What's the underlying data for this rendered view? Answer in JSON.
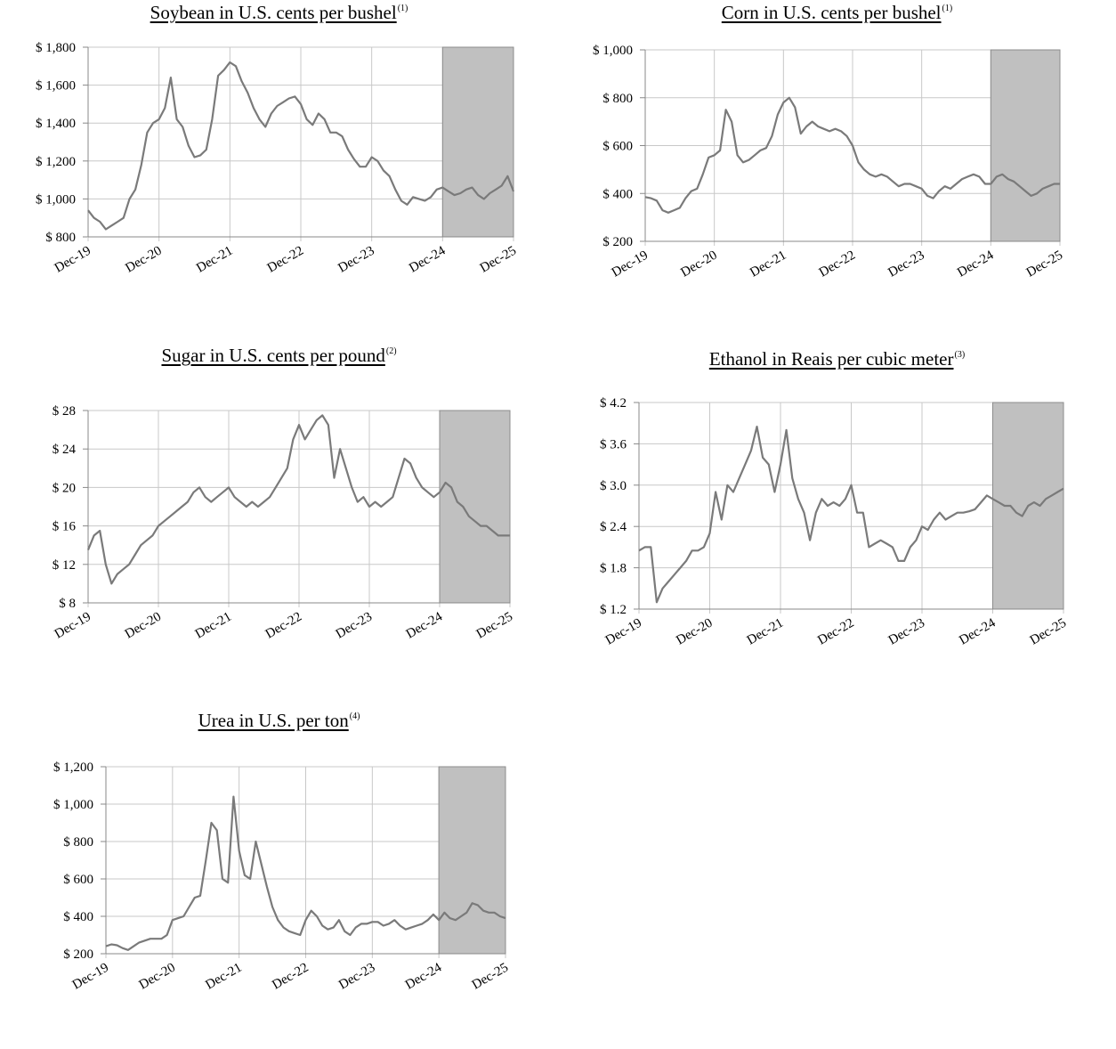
{
  "chart_data": [
    {
      "type": "line",
      "title": "Soybean in U.S. cents per bushel",
      "title_note": "(1)",
      "x_ticks": [
        "Dec-19",
        "Dec-20",
        "Dec-21",
        "Dec-22",
        "Dec-23",
        "Dec-24",
        "Dec-25"
      ],
      "y_ticks": [
        "$ 800",
        "$ 1,000",
        "$ 1,200",
        "$ 1,400",
        "$ 1,600",
        "$ 1,800"
      ],
      "ylim": [
        800,
        1800
      ],
      "xlim": [
        0,
        72
      ],
      "shaded_range": [
        60,
        72
      ],
      "line_color": "#7a7a7a",
      "shade_color": "#c0c0c0",
      "series": [
        {
          "x": [
            0,
            1,
            2,
            3,
            4,
            5,
            6,
            7,
            8,
            9,
            10,
            11,
            12,
            13,
            14,
            15,
            16,
            17,
            18,
            19,
            20,
            21,
            22,
            23,
            24,
            25,
            26,
            27,
            28,
            29,
            30,
            31,
            32,
            33,
            34,
            35,
            36,
            37,
            38,
            39,
            40,
            41,
            42,
            43,
            44,
            45,
            46,
            47,
            48,
            49,
            50,
            51,
            52,
            53,
            54,
            55,
            56,
            57,
            58,
            59,
            60,
            61,
            62,
            63,
            64,
            65,
            66,
            67,
            68,
            69,
            70,
            71,
            72
          ],
          "values": [
            940,
            900,
            880,
            840,
            860,
            880,
            900,
            1000,
            1050,
            1180,
            1350,
            1400,
            1420,
            1480,
            1640,
            1420,
            1380,
            1280,
            1220,
            1230,
            1260,
            1420,
            1650,
            1680,
            1720,
            1700,
            1620,
            1560,
            1480,
            1420,
            1380,
            1450,
            1490,
            1510,
            1530,
            1540,
            1500,
            1420,
            1390,
            1450,
            1420,
            1350,
            1350,
            1330,
            1260,
            1210,
            1170,
            1170,
            1220,
            1200,
            1150,
            1120,
            1050,
            990,
            970,
            1010,
            1000,
            990,
            1010,
            1050,
            1060,
            1040,
            1020,
            1030,
            1050,
            1060,
            1020,
            1000,
            1030,
            1050,
            1070,
            1120,
            1040
          ]
        }
      ]
    },
    {
      "type": "line",
      "title": "Corn in U.S. cents per bushel",
      "title_note": "(1)",
      "x_ticks": [
        "Dec-19",
        "Dec-20",
        "Dec-21",
        "Dec-22",
        "Dec-23",
        "Dec-24",
        "Dec-25"
      ],
      "y_ticks": [
        "$ 200",
        "$ 400",
        "$ 600",
        "$ 800",
        "$ 1,000"
      ],
      "ylim": [
        200,
        1000
      ],
      "xlim": [
        0,
        72
      ],
      "shaded_range": [
        60,
        72
      ],
      "line_color": "#7a7a7a",
      "shade_color": "#c0c0c0",
      "series": [
        {
          "x": [
            0,
            1,
            2,
            3,
            4,
            5,
            6,
            7,
            8,
            9,
            10,
            11,
            12,
            13,
            14,
            15,
            16,
            17,
            18,
            19,
            20,
            21,
            22,
            23,
            24,
            25,
            26,
            27,
            28,
            29,
            30,
            31,
            32,
            33,
            34,
            35,
            36,
            37,
            38,
            39,
            40,
            41,
            42,
            43,
            44,
            45,
            46,
            47,
            48,
            49,
            50,
            51,
            52,
            53,
            54,
            55,
            56,
            57,
            58,
            59,
            60,
            61,
            62,
            63,
            64,
            65,
            66,
            67,
            68,
            69,
            70,
            71,
            72
          ],
          "values": [
            385,
            380,
            370,
            330,
            320,
            330,
            340,
            380,
            410,
            420,
            480,
            550,
            560,
            580,
            750,
            700,
            560,
            530,
            540,
            560,
            580,
            590,
            640,
            730,
            780,
            800,
            760,
            650,
            680,
            700,
            680,
            670,
            660,
            670,
            660,
            640,
            600,
            530,
            500,
            480,
            470,
            480,
            470,
            450,
            430,
            440,
            440,
            430,
            420,
            390,
            380,
            410,
            430,
            420,
            440,
            460,
            470,
            480,
            470,
            440,
            440,
            470,
            480,
            460,
            450,
            430,
            410,
            390,
            400,
            420,
            430,
            440,
            440
          ]
        }
      ]
    },
    {
      "type": "line",
      "title": "Sugar in U.S. cents per pound",
      "title_note": "(2)",
      "x_ticks": [
        "Dec-19",
        "Dec-20",
        "Dec-21",
        "Dec-22",
        "Dec-23",
        "Dec-24",
        "Dec-25"
      ],
      "y_ticks": [
        "$ 8",
        "$ 12",
        "$ 16",
        "$ 20",
        "$ 24",
        "$ 28"
      ],
      "ylim": [
        8,
        28
      ],
      "xlim": [
        0,
        72
      ],
      "shaded_range": [
        60,
        72
      ],
      "line_color": "#7a7a7a",
      "shade_color": "#c0c0c0",
      "series": [
        {
          "x": [
            0,
            1,
            2,
            3,
            4,
            5,
            6,
            7,
            8,
            9,
            10,
            11,
            12,
            13,
            14,
            15,
            16,
            17,
            18,
            19,
            20,
            21,
            22,
            23,
            24,
            25,
            26,
            27,
            28,
            29,
            30,
            31,
            32,
            33,
            34,
            35,
            36,
            37,
            38,
            39,
            40,
            41,
            42,
            43,
            44,
            45,
            46,
            47,
            48,
            49,
            50,
            51,
            52,
            53,
            54,
            55,
            56,
            57,
            58,
            59,
            60,
            61,
            62,
            63,
            64,
            65,
            66,
            67,
            68,
            69,
            70,
            71,
            72
          ],
          "values": [
            13.5,
            15.0,
            15.5,
            12.0,
            10.0,
            11.0,
            11.5,
            12.0,
            13.0,
            14.0,
            14.5,
            15.0,
            16.0,
            16.5,
            17.0,
            17.5,
            18.0,
            18.5,
            19.5,
            20.0,
            19.0,
            18.5,
            19.0,
            19.5,
            20.0,
            19.0,
            18.5,
            18.0,
            18.5,
            18.0,
            18.5,
            19.0,
            20.0,
            21.0,
            22.0,
            25.0,
            26.5,
            25.0,
            26.0,
            27.0,
            27.5,
            26.5,
            21.0,
            24.0,
            22.0,
            20.0,
            18.5,
            19.0,
            18.0,
            18.5,
            18.0,
            18.5,
            19.0,
            21.0,
            23.0,
            22.5,
            21.0,
            20.0,
            19.5,
            19.0,
            19.5,
            20.5,
            20.0,
            18.5,
            18.0,
            17.0,
            16.5,
            16.0,
            16.0,
            15.5,
            15.0,
            15.0,
            15.0
          ]
        }
      ]
    },
    {
      "type": "line",
      "title": "Ethanol in Reais per cubic meter",
      "title_note": "(3)",
      "x_ticks": [
        "Dec-19",
        "Dec-20",
        "Dec-21",
        "Dec-22",
        "Dec-23",
        "Dec-24",
        "Dec-25"
      ],
      "y_ticks": [
        "$ 1.2",
        "$ 1.8",
        "$ 2.4",
        "$ 3.0",
        "$ 3.6",
        "$ 4.2"
      ],
      "ylim": [
        1.2,
        4.2
      ],
      "xlim": [
        0,
        72
      ],
      "shaded_range": [
        60,
        72
      ],
      "line_color": "#7a7a7a",
      "shade_color": "#c0c0c0",
      "series": [
        {
          "x": [
            0,
            1,
            2,
            3,
            4,
            5,
            6,
            7,
            8,
            9,
            10,
            11,
            12,
            13,
            14,
            15,
            16,
            17,
            18,
            19,
            20,
            21,
            22,
            23,
            24,
            25,
            26,
            27,
            28,
            29,
            30,
            31,
            32,
            33,
            34,
            35,
            36,
            37,
            38,
            39,
            40,
            41,
            42,
            43,
            44,
            45,
            46,
            47,
            48,
            49,
            50,
            51,
            52,
            53,
            54,
            55,
            56,
            57,
            58,
            59,
            60,
            61,
            62,
            63,
            64,
            65,
            66,
            67,
            68,
            69,
            70,
            71,
            72
          ],
          "values": [
            2.05,
            2.1,
            2.1,
            1.3,
            1.5,
            1.6,
            1.7,
            1.8,
            1.9,
            2.05,
            2.05,
            2.1,
            2.3,
            2.9,
            2.5,
            3.0,
            2.9,
            3.1,
            3.3,
            3.5,
            3.85,
            3.4,
            3.3,
            2.9,
            3.3,
            3.8,
            3.1,
            2.8,
            2.6,
            2.2,
            2.6,
            2.8,
            2.7,
            2.75,
            2.7,
            2.8,
            3.0,
            2.6,
            2.6,
            2.1,
            2.15,
            2.2,
            2.15,
            2.1,
            1.9,
            1.9,
            2.1,
            2.2,
            2.4,
            2.35,
            2.5,
            2.6,
            2.5,
            2.55,
            2.6,
            2.6,
            2.62,
            2.65,
            2.75,
            2.85,
            2.8,
            2.75,
            2.7,
            2.7,
            2.6,
            2.55,
            2.7,
            2.75,
            2.7,
            2.8,
            2.85,
            2.9,
            2.95
          ]
        }
      ]
    },
    {
      "type": "line",
      "title": "Urea in U.S. per ton",
      "title_note": "(4)",
      "x_ticks": [
        "Dec-19",
        "Dec-20",
        "Dec-21",
        "Dec-22",
        "Dec-23",
        "Dec-24",
        "Dec-25"
      ],
      "y_ticks": [
        "$ 200",
        "$ 400",
        "$ 600",
        "$ 800",
        "$ 1,000",
        "$ 1,200"
      ],
      "ylim": [
        200,
        1200
      ],
      "xlim": [
        0,
        72
      ],
      "shaded_range": [
        60,
        72
      ],
      "line_color": "#7a7a7a",
      "shade_color": "#c0c0c0",
      "series": [
        {
          "x": [
            0,
            1,
            2,
            3,
            4,
            5,
            6,
            7,
            8,
            9,
            10,
            11,
            12,
            13,
            14,
            15,
            16,
            17,
            18,
            19,
            20,
            21,
            22,
            23,
            24,
            25,
            26,
            27,
            28,
            29,
            30,
            31,
            32,
            33,
            34,
            35,
            36,
            37,
            38,
            39,
            40,
            41,
            42,
            43,
            44,
            45,
            46,
            47,
            48,
            49,
            50,
            51,
            52,
            53,
            54,
            55,
            56,
            57,
            58,
            59,
            60,
            61,
            62,
            63,
            64,
            65,
            66,
            67,
            68,
            69,
            70,
            71,
            72
          ],
          "values": [
            240,
            250,
            245,
            230,
            220,
            240,
            260,
            270,
            280,
            280,
            280,
            300,
            380,
            390,
            400,
            450,
            500,
            510,
            700,
            900,
            860,
            600,
            580,
            1040,
            750,
            620,
            600,
            800,
            680,
            560,
            450,
            380,
            340,
            320,
            310,
            300,
            380,
            430,
            400,
            350,
            330,
            340,
            380,
            320,
            300,
            340,
            360,
            360,
            370,
            370,
            350,
            360,
            380,
            350,
            330,
            340,
            350,
            360,
            380,
            410,
            380,
            420,
            390,
            380,
            400,
            420,
            470,
            460,
            430,
            420,
            420,
            400,
            390
          ]
        }
      ]
    }
  ]
}
